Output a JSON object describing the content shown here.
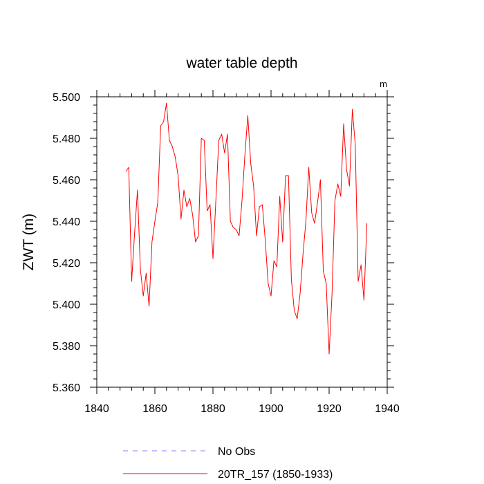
{
  "chart_data": {
    "type": "line",
    "title": "water table depth",
    "units_label": "m",
    "ylabel": "ZWT  (m)",
    "xlabel": "",
    "xlim": [
      1840,
      1940
    ],
    "ylim": [
      5.36,
      5.5
    ],
    "x_ticks": [
      1840,
      1860,
      1880,
      1900,
      1920,
      1940
    ],
    "x_tick_labels": [
      "1840",
      "1860",
      "1880",
      "1900",
      "1920",
      "1940"
    ],
    "y_ticks": [
      5.36,
      5.38,
      5.4,
      5.42,
      5.44,
      5.46,
      5.48,
      5.5
    ],
    "y_tick_labels": [
      "5.360",
      "5.380",
      "5.400",
      "5.420",
      "5.440",
      "5.460",
      "5.480",
      "5.500"
    ],
    "grid": false,
    "legend": [
      {
        "label": "No Obs",
        "color": "#8080ff",
        "style": "dashed"
      },
      {
        "label": "20TR_157 (1850-1933)",
        "color": "#ff0000",
        "style": "solid"
      }
    ],
    "series": [
      {
        "name": "20TR_157 (1850-1933)",
        "color": "#ff0000",
        "x": [
          1850,
          1851,
          1852,
          1853,
          1854,
          1855,
          1856,
          1857,
          1858,
          1859,
          1860,
          1861,
          1862,
          1863,
          1864,
          1865,
          1866,
          1867,
          1868,
          1869,
          1870,
          1871,
          1872,
          1873,
          1874,
          1875,
          1876,
          1877,
          1878,
          1879,
          1880,
          1881,
          1882,
          1883,
          1884,
          1885,
          1886,
          1887,
          1888,
          1889,
          1890,
          1891,
          1892,
          1893,
          1894,
          1895,
          1896,
          1897,
          1898,
          1899,
          1900,
          1901,
          1902,
          1903,
          1904,
          1905,
          1906,
          1907,
          1908,
          1909,
          1910,
          1911,
          1912,
          1913,
          1914,
          1915,
          1916,
          1917,
          1918,
          1919,
          1920,
          1921,
          1922,
          1923,
          1924,
          1925,
          1926,
          1927,
          1928,
          1929,
          1930,
          1931,
          1932,
          1933
        ],
        "values": [
          5.464,
          5.466,
          5.411,
          5.434,
          5.455,
          5.417,
          5.404,
          5.415,
          5.399,
          5.43,
          5.44,
          5.449,
          5.486,
          5.488,
          5.497,
          5.479,
          5.476,
          5.471,
          5.462,
          5.441,
          5.455,
          5.447,
          5.451,
          5.443,
          5.43,
          5.433,
          5.48,
          5.479,
          5.445,
          5.448,
          5.422,
          5.45,
          5.479,
          5.482,
          5.473,
          5.482,
          5.44,
          5.437,
          5.436,
          5.433,
          5.45,
          5.472,
          5.491,
          5.468,
          5.457,
          5.433,
          5.447,
          5.448,
          5.431,
          5.41,
          5.404,
          5.421,
          5.418,
          5.452,
          5.43,
          5.462,
          5.462,
          5.412,
          5.397,
          5.393,
          5.405,
          5.424,
          5.44,
          5.466,
          5.444,
          5.439,
          5.449,
          5.46,
          5.416,
          5.41,
          5.376,
          5.405,
          5.45,
          5.458,
          5.452,
          5.487,
          5.465,
          5.457,
          5.494,
          5.477,
          5.411,
          5.419,
          5.402,
          5.439
        ]
      }
    ]
  }
}
